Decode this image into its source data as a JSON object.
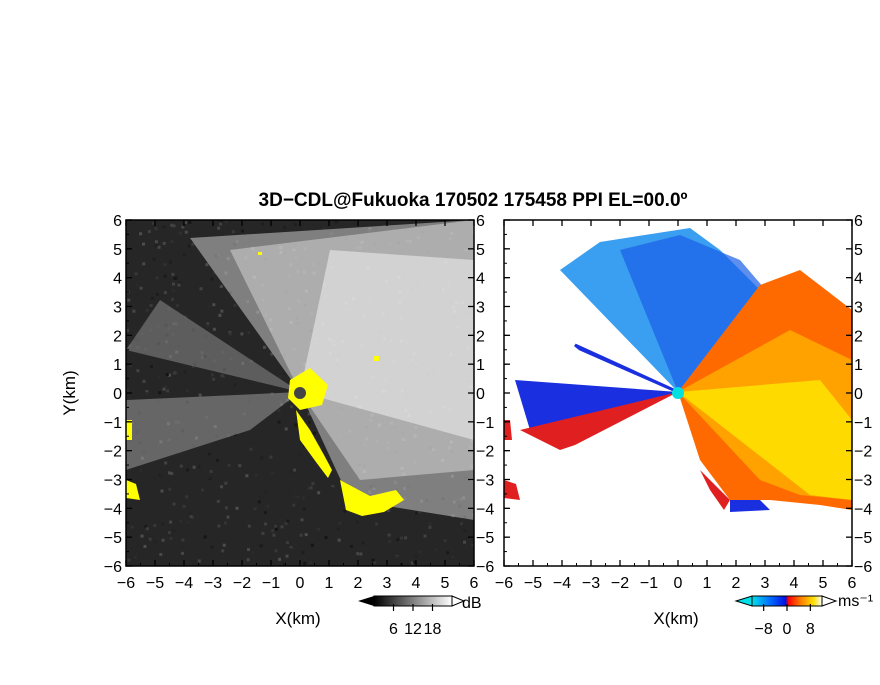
{
  "chart_data": {
    "title": "3D−CDL@Fukuoka 170502 175458 PPI EL=00.0º",
    "panels": [
      {
        "type": "heatmap",
        "quantity": "reflectivity",
        "xlabel": "X(km)",
        "ylabel": "Y(km)",
        "xlim": [
          -6,
          6
        ],
        "ylim": [
          -6,
          6
        ],
        "x_ticks": [
          "−6",
          "−5",
          "−4",
          "−3",
          "−2",
          "−1",
          "0",
          "1",
          "2",
          "3",
          "4",
          "5",
          "6"
        ],
        "y_ticks": [
          "−6",
          "−5",
          "−4",
          "−3",
          "−2",
          "−1",
          "0",
          "1",
          "2",
          "3",
          "4",
          "5",
          "6"
        ],
        "colorbar": {
          "unit": "dB",
          "ticks": [
            "6",
            "12",
            "18"
          ],
          "tick_values": [
            6,
            12,
            18
          ],
          "range": [
            0,
            24
          ],
          "colors": [
            "#000000",
            "#ffffff"
          ]
        },
        "noise_fill_color": "#ffff00"
      },
      {
        "type": "heatmap",
        "quantity": "doppler velocity",
        "xlabel": "X(km)",
        "xlim": [
          -6,
          6
        ],
        "ylim": [
          -6,
          6
        ],
        "x_ticks": [
          "−6",
          "−5",
          "−4",
          "−3",
          "−2",
          "−1",
          "0",
          "1",
          "2",
          "3",
          "4",
          "5",
          "6"
        ],
        "y_ticks": [
          "−6",
          "−5",
          "−4",
          "−3",
          "−2",
          "−1",
          "0",
          "1",
          "2",
          "3",
          "4",
          "5",
          "6"
        ],
        "colorbar": {
          "unit": "ms⁻¹",
          "ticks": [
            "−8",
            "0",
            "8"
          ],
          "tick_values": [
            -8,
            0,
            8
          ],
          "range": [
            -12,
            12
          ],
          "colors": [
            "#00e0e8",
            "#0070ff",
            "#0010e0",
            "#ff0000",
            "#ff8000",
            "#ffe000",
            "#ffffff"
          ]
        },
        "radar_marker_color": "#00e0e0"
      }
    ]
  }
}
